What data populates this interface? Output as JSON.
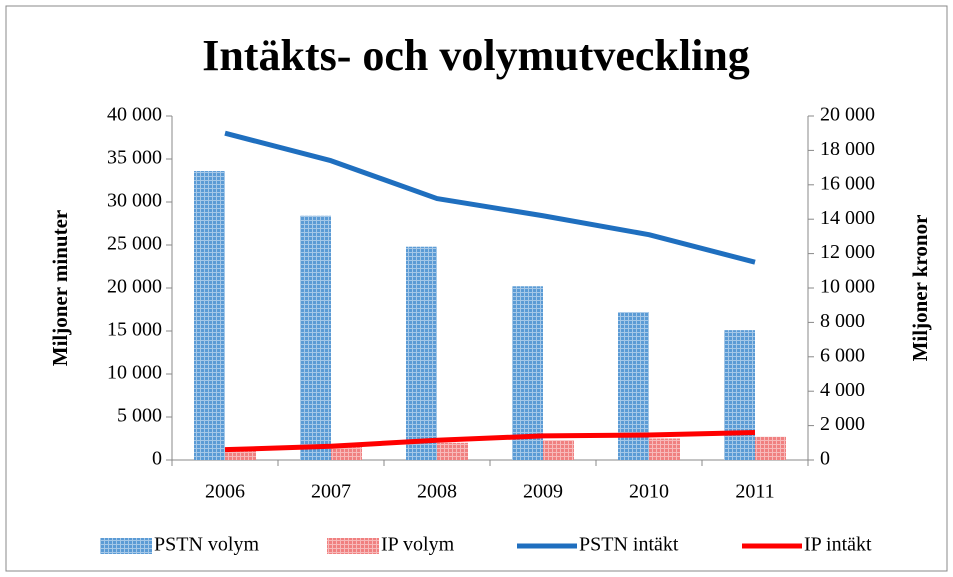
{
  "chart_data": {
    "type": "bar_line",
    "title": "Intäkts- och volymutveckling",
    "y_label": "Miljoner minuter",
    "y2_label": "Miljoner kronor",
    "categories": [
      "2006",
      "2007",
      "2008",
      "2009",
      "2010",
      "2011"
    ],
    "series": [
      {
        "name": "PSTN volym",
        "type": "bar",
        "color": "#5b9bd5",
        "values": [
          33600,
          28400,
          24800,
          20200,
          17200,
          15100
        ]
      },
      {
        "name": "IP volym",
        "type": "bar",
        "color": "#f08080",
        "values": [
          1200,
          1500,
          2000,
          2300,
          2500,
          2700
        ]
      },
      {
        "name": "PSTN intäkt",
        "type": "line",
        "axis": "y2",
        "color": "#1f6fbf",
        "values": [
          19000,
          17400,
          15200,
          14200,
          13100,
          11500
        ]
      },
      {
        "name": "IP intäkt",
        "type": "line",
        "axis": "y2",
        "color": "#ff0000",
        "values": [
          600,
          800,
          1150,
          1400,
          1450,
          1600
        ]
      }
    ],
    "ylim": [
      0,
      40000
    ],
    "yticks": [
      0,
      {
        "value": 5000,
        "label": "5 000"
      },
      {
        "value": 10000,
        "label": "10 000"
      },
      {
        "value": 15000,
        "label": "15 000"
      },
      {
        "value": 20000,
        "label": "20 000"
      },
      {
        "value": 25000,
        "label": "25 000"
      },
      {
        "value": 30000,
        "label": "30 000"
      },
      {
        "value": 35000,
        "label": "35 000"
      },
      {
        "value": 40000,
        "label": "40 000"
      }
    ],
    "y2lim": [
      0,
      20000
    ],
    "y2ticks": [
      0,
      {
        "value": 2000,
        "label": "2 000"
      },
      {
        "value": 4000,
        "label": "4 000"
      },
      {
        "value": 6000,
        "label": "6 000"
      },
      {
        "value": 8000,
        "label": "8 000"
      },
      {
        "value": 10000,
        "label": "10 000"
      },
      {
        "value": 12000,
        "label": "12 000"
      },
      {
        "value": 14000,
        "label": "14 000"
      },
      {
        "value": 16000,
        "label": "16 000"
      },
      {
        "value": 18000,
        "label": "18 000"
      },
      {
        "value": 20000,
        "label": "20 000"
      }
    ],
    "legend": "bottom"
  }
}
